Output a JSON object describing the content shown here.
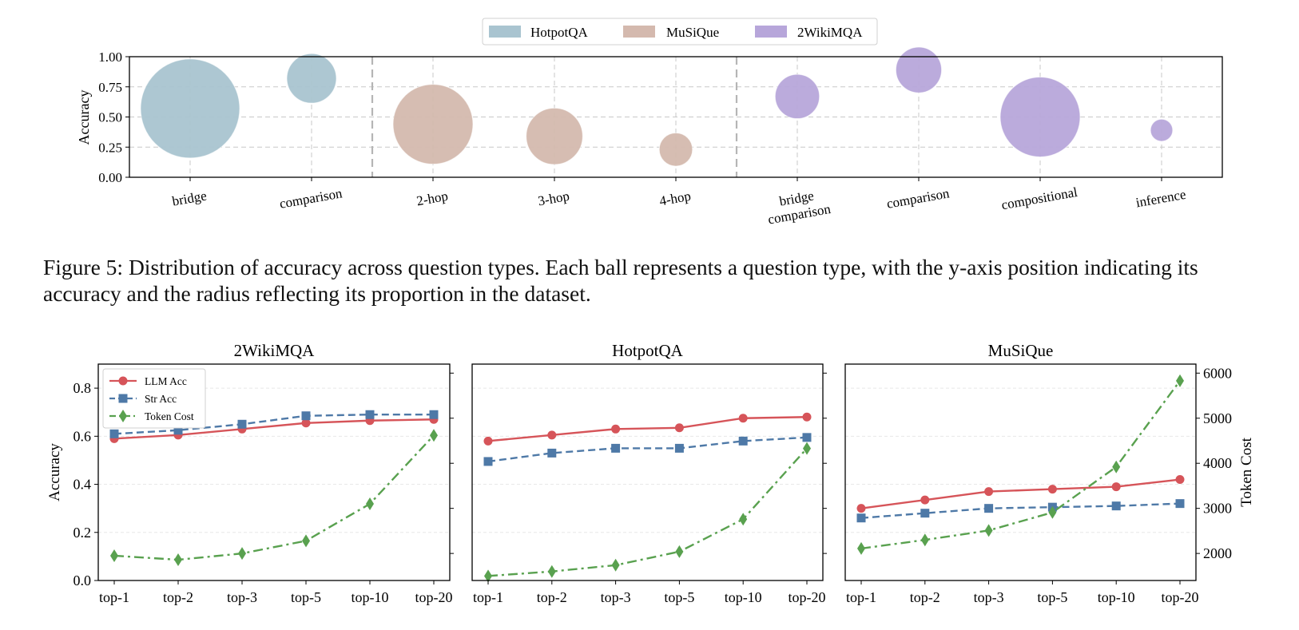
{
  "figure5": {
    "caption": "Figure 5: Distribution of accuracy across question types. Each ball represents a question type, with the y-axis position indicating its accuracy and the radius reflecting its proportion in the dataset."
  },
  "colors": {
    "hotpot": "#a9c4d0",
    "musique": "#d4b9ae",
    "wiki": "#b7a6da",
    "llm": "#d65459",
    "str": "#4e79a7",
    "token": "#59a14f"
  },
  "chart_data": [
    {
      "type": "scatter",
      "ylabel": "Accuracy",
      "ylim": [
        0,
        1
      ],
      "yticks": [
        "0.00",
        "0.25",
        "0.50",
        "0.75",
        "1.00"
      ],
      "grid": true,
      "legend_position": "top-center",
      "legend": [
        "HotpotQA",
        "MuSiQue",
        "2WikiMQA"
      ],
      "categories": [
        "bridge",
        "comparison",
        "2-hop",
        "3-hop",
        "4-hop",
        "bridge comparison",
        "comparison",
        "compositional",
        "inference"
      ],
      "category_lines": [
        [
          "bridge"
        ],
        [
          "comparison"
        ],
        [
          "2-hop"
        ],
        [
          "3-hop"
        ],
        [
          "4-hop"
        ],
        [
          "bridge",
          "comparison"
        ],
        [
          "comparison"
        ],
        [
          "compositional"
        ],
        [
          "inference"
        ]
      ],
      "series": [
        {
          "name": "HotpotQA",
          "color_key": "hotpot",
          "points": [
            {
              "x": "bridge",
              "y": 0.57,
              "proportion": 0.8
            },
            {
              "x": "comparison",
              "y": 0.82,
              "proportion": 0.2
            }
          ]
        },
        {
          "name": "MuSiQue",
          "color_key": "musique",
          "points": [
            {
              "x": "2-hop",
              "y": 0.44,
              "proportion": 0.52
            },
            {
              "x": "3-hop",
              "y": 0.34,
              "proportion": 0.26
            },
            {
              "x": "4-hop",
              "y": 0.23,
              "proportion": 0.09
            }
          ]
        },
        {
          "name": "2WikiMQA",
          "color_key": "wiki",
          "points": [
            {
              "x": "bridge comparison",
              "y": 0.67,
              "proportion": 0.16
            },
            {
              "x": "comparison",
              "y": 0.89,
              "proportion": 0.17
            },
            {
              "x": "compositional",
              "y": 0.5,
              "proportion": 0.52
            },
            {
              "x": "inference",
              "y": 0.39,
              "proportion": 0.04
            }
          ]
        }
      ]
    },
    {
      "type": "line",
      "title": "2WikiMQA",
      "ylabel": "Accuracy",
      "ylim": [
        0,
        0.9
      ],
      "yticks": [
        "0.0",
        "0.2",
        "0.4",
        "0.6",
        "0.8"
      ],
      "y2lim": [
        1400,
        6200
      ],
      "categories": [
        "top-1",
        "top-2",
        "top-3",
        "top-5",
        "top-10",
        "top-20"
      ],
      "legend": [
        "LLM Acc",
        "Str Acc",
        "Token Cost"
      ],
      "legend_position": "top-left",
      "series": [
        {
          "name": "LLM Acc",
          "axis": "left",
          "values": [
            0.59,
            0.605,
            0.63,
            0.655,
            0.665,
            0.67
          ]
        },
        {
          "name": "Str Acc",
          "axis": "left",
          "values": [
            0.61,
            0.625,
            0.65,
            0.685,
            0.69,
            0.69
          ]
        },
        {
          "name": "Token Cost",
          "axis": "right",
          "values": [
            1950,
            1860,
            2000,
            2280,
            3100,
            4620
          ]
        }
      ]
    },
    {
      "type": "line",
      "title": "HotpotQA",
      "ylim": [
        0,
        0.9
      ],
      "y2lim": [
        1400,
        6200
      ],
      "categories": [
        "top-1",
        "top-2",
        "top-3",
        "top-5",
        "top-10",
        "top-20"
      ],
      "series": [
        {
          "name": "LLM Acc",
          "axis": "left",
          "values": [
            0.58,
            0.605,
            0.63,
            0.635,
            0.675,
            0.68
          ]
        },
        {
          "name": "Str Acc",
          "axis": "left",
          "values": [
            0.495,
            0.53,
            0.55,
            0.55,
            0.58,
            0.595
          ]
        },
        {
          "name": "Token Cost",
          "axis": "right",
          "values": [
            1500,
            1600,
            1740,
            2040,
            2760,
            4330
          ]
        }
      ]
    },
    {
      "type": "line",
      "title": "MuSiQue",
      "ylim": [
        0,
        0.9
      ],
      "y2label": "Token Cost",
      "y2lim": [
        1400,
        6200
      ],
      "y2ticks": [
        "2000",
        "3000",
        "4000",
        "5000",
        "6000"
      ],
      "categories": [
        "top-1",
        "top-2",
        "top-3",
        "top-5",
        "top-10",
        "top-20"
      ],
      "series": [
        {
          "name": "LLM Acc",
          "axis": "left",
          "values": [
            0.3,
            0.335,
            0.37,
            0.38,
            0.39,
            0.42
          ]
        },
        {
          "name": "Str Acc",
          "axis": "left",
          "values": [
            0.26,
            0.28,
            0.3,
            0.305,
            0.31,
            0.32
          ]
        },
        {
          "name": "Token Cost",
          "axis": "right",
          "values": [
            2110,
            2300,
            2510,
            2910,
            3920,
            5830
          ]
        }
      ]
    }
  ]
}
